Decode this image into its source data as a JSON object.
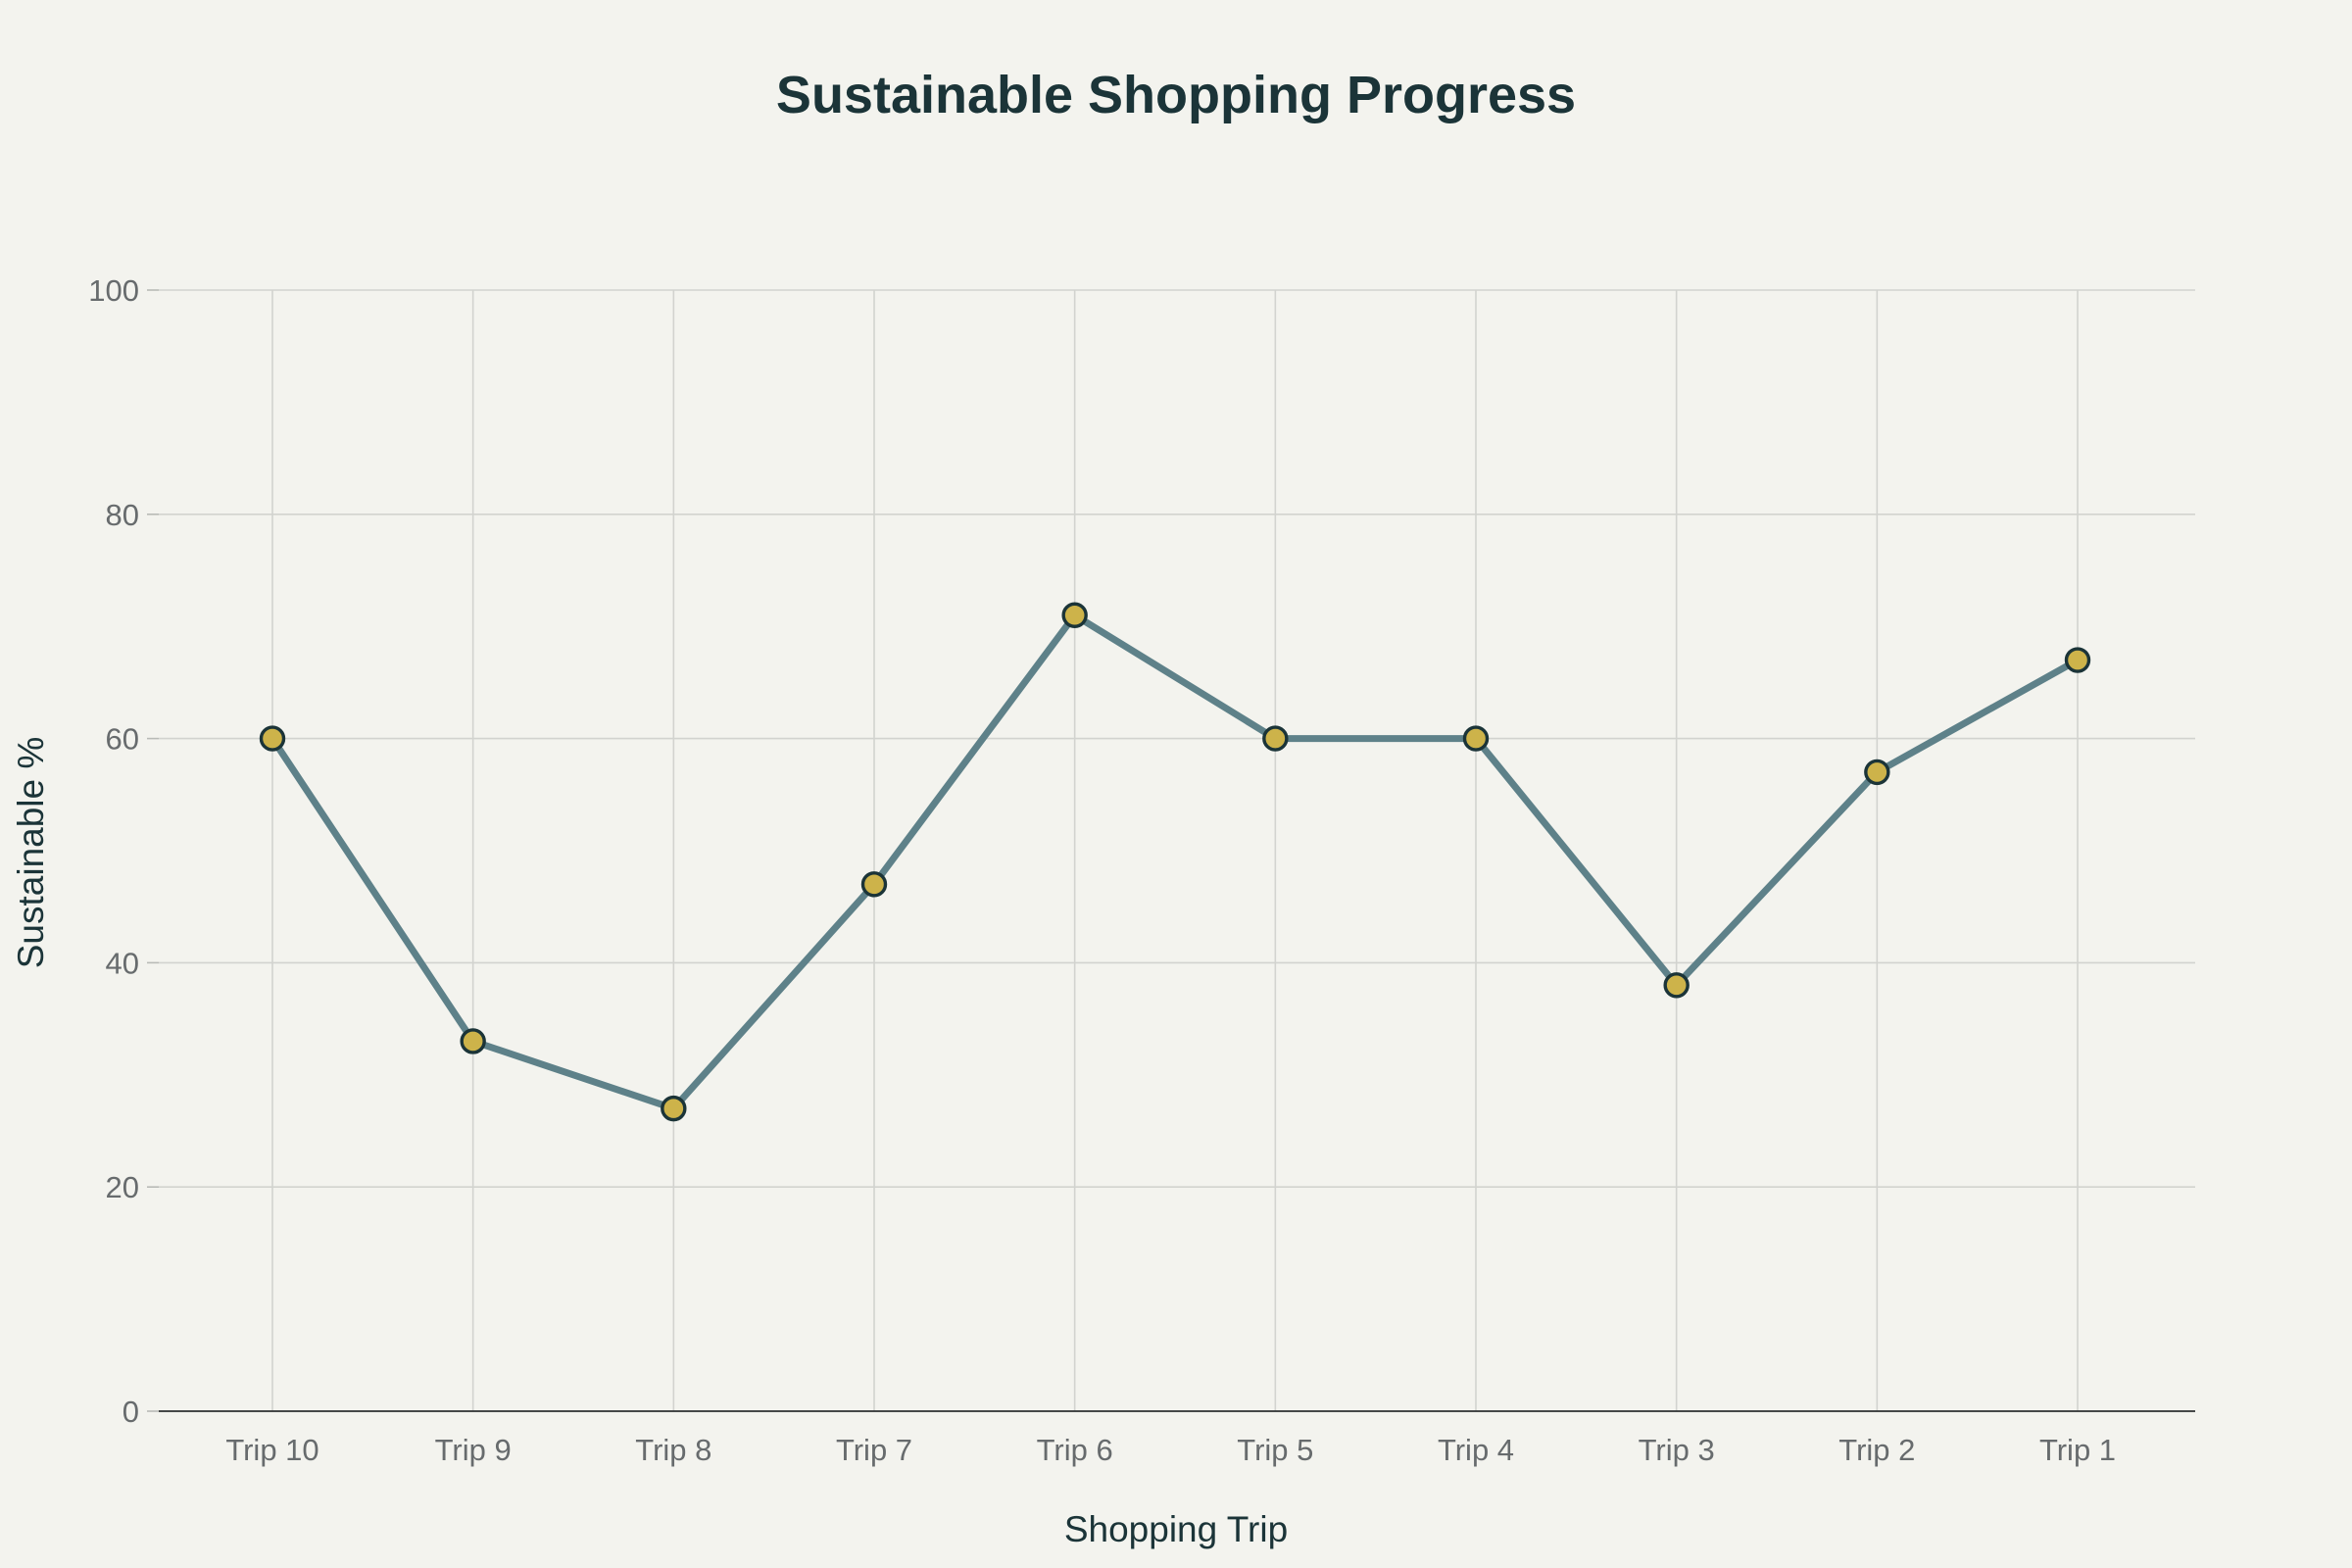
{
  "chart_data": {
    "type": "line",
    "title": "Sustainable Shopping Progress",
    "xlabel": "Shopping Trip",
    "ylabel": "Sustainable %",
    "categories": [
      "Trip 10",
      "Trip 9",
      "Trip 8",
      "Trip 7",
      "Trip 6",
      "Trip 5",
      "Trip 4",
      "Trip 3",
      "Trip 2",
      "Trip 1"
    ],
    "series": [
      {
        "values": [
          60,
          33,
          27,
          47,
          71,
          60,
          60,
          38,
          57,
          67
        ]
      }
    ],
    "ylim": [
      0,
      100
    ],
    "yticks": [
      0,
      20,
      40,
      60,
      80,
      100
    ],
    "grid": true,
    "legend": "none",
    "colors": {
      "background": "#f3f3ee",
      "line": "#5e8189",
      "marker_fill": "#cdb34a",
      "marker_stroke": "#1b3438",
      "title": "#1b3438",
      "grid": "#d2d3cf"
    }
  }
}
